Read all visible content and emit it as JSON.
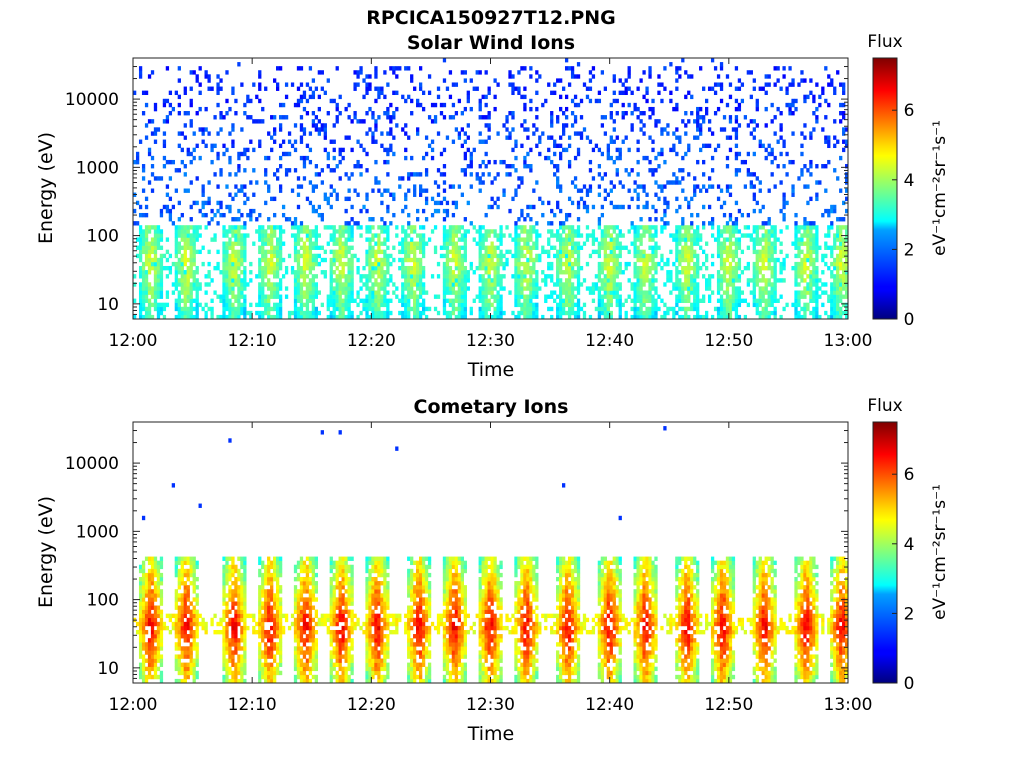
{
  "figure": {
    "title": "RPCICA150927T12.PNG"
  },
  "chart_data": [
    {
      "type": "heatmap",
      "title": "Solar Wind Ions",
      "xlabel": "Time",
      "ylabel": "Energy (eV)",
      "x_ticks": [
        "12:00",
        "12:10",
        "12:20",
        "12:30",
        "12:40",
        "12:50",
        "13:00"
      ],
      "xlim": [
        "12:00",
        "13:00"
      ],
      "y_scale": "log",
      "y_ticks": [
        "10",
        "100",
        "1000",
        "10000"
      ],
      "ylim": [
        6,
        40000
      ],
      "colorbar": {
        "label": "Flux",
        "units": "eV⁻¹cm⁻²sr⁻¹s⁻¹",
        "range": [
          0,
          7.5
        ],
        "ticks": [
          "0",
          "2",
          "4",
          "6"
        ],
        "colormap": "jet"
      },
      "pattern": {
        "burst_times_min": [
          1.5,
          4.5,
          8.5,
          11.5,
          14.5,
          17.5,
          20.5,
          23.5,
          27,
          30,
          33,
          36.5,
          40,
          43,
          46.5,
          50,
          53,
          56.5,
          59.5
        ],
        "description_values": {
          "background_energy_range_eV": [
            150,
            30000
          ],
          "background_flux": 1.5,
          "burst_energy_range_eV": [
            6,
            200
          ],
          "burst_flux_peak": 4.5
        }
      }
    },
    {
      "type": "heatmap",
      "title": "Cometary Ions",
      "xlabel": "Time",
      "ylabel": "Energy (eV)",
      "x_ticks": [
        "12:00",
        "12:10",
        "12:20",
        "12:30",
        "12:40",
        "12:50",
        "13:00"
      ],
      "xlim": [
        "12:00",
        "13:00"
      ],
      "y_scale": "log",
      "y_ticks": [
        "10",
        "100",
        "1000",
        "10000"
      ],
      "ylim": [
        6,
        40000
      ],
      "colorbar": {
        "label": "Flux",
        "units": "eV⁻¹cm⁻²sr⁻¹s⁻¹",
        "range": [
          0,
          7.5
        ],
        "ticks": [
          "0",
          "2",
          "4",
          "6"
        ],
        "colormap": "jet"
      },
      "pattern": {
        "burst_times_min": [
          1.5,
          4.5,
          8.5,
          11.5,
          14.5,
          17.5,
          20.5,
          24,
          27,
          30,
          33,
          36.5,
          40,
          43,
          46.5,
          49.5,
          53,
          56.5,
          59.5
        ],
        "description_values": {
          "burst_energy_range_eV": [
            6,
            400
          ],
          "burst_flux_peak": 6.8,
          "band_energy_eV": 40
        }
      }
    }
  ]
}
